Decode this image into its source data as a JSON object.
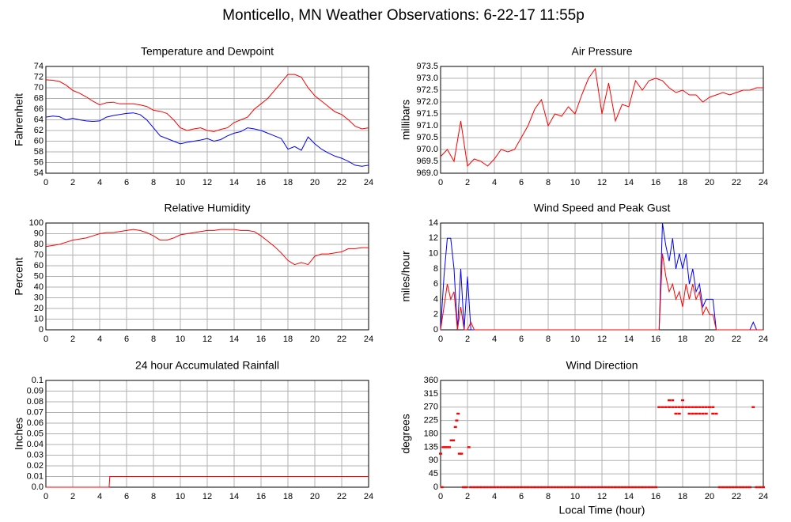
{
  "title": "Monticello, MN Weather Observations: 6-22-17 11:55p",
  "chart_data": [
    {
      "type": "line",
      "title": "Temperature and Dewpoint",
      "ylabel": "Fahrenheit",
      "x": [
        0,
        0.5,
        1,
        1.5,
        2,
        2.5,
        3,
        3.5,
        4,
        4.5,
        5,
        5.5,
        6,
        6.5,
        7,
        7.5,
        8,
        8.5,
        9,
        9.5,
        10,
        10.5,
        11,
        11.5,
        12,
        12.5,
        13,
        13.5,
        14,
        14.5,
        15,
        15.5,
        16,
        16.5,
        17,
        17.5,
        18,
        18.5,
        19,
        19.5,
        20,
        20.5,
        21,
        21.5,
        22,
        22.5,
        23,
        23.5,
        24
      ],
      "series": [
        {
          "color": "#ff0000",
          "values": [
            71.5,
            71.4,
            71.2,
            70.5,
            69.5,
            69,
            68.3,
            67.5,
            66.8,
            67.2,
            67.3,
            67,
            67,
            67,
            66.8,
            66.5,
            65.8,
            65.6,
            65.2,
            64,
            62.5,
            62,
            62.3,
            62.5,
            62,
            61.8,
            62.2,
            62.5,
            63.5,
            64,
            64.5,
            66,
            67,
            68,
            69.5,
            71,
            72.5,
            72.5,
            72,
            70,
            68.5,
            67.5,
            66.5,
            65.5,
            65,
            64,
            62.8,
            62.3,
            62.5
          ]
        },
        {
          "color": "#0000ff",
          "values": [
            64.5,
            64.7,
            64.6,
            64,
            64.3,
            64,
            63.8,
            63.7,
            63.8,
            64.5,
            64.8,
            65,
            65.2,
            65.3,
            65,
            64,
            62.5,
            61,
            60.5,
            60,
            59.5,
            59.8,
            60,
            60.2,
            60.5,
            60,
            60.3,
            61,
            61.5,
            61.8,
            62.5,
            62.3,
            62,
            61.5,
            61,
            60.5,
            58.5,
            59,
            58.3,
            60.8,
            59.5,
            58.5,
            57.8,
            57.2,
            56.8,
            56.2,
            55.5,
            55.3,
            55.5
          ]
        }
      ],
      "xlim": [
        0,
        24
      ],
      "xticks": [
        0,
        2,
        4,
        6,
        8,
        10,
        12,
        14,
        16,
        18,
        20,
        22,
        24
      ],
      "ylim": [
        54,
        74
      ],
      "yticks": [
        54,
        56,
        58,
        60,
        62,
        64,
        66,
        68,
        70,
        72,
        74
      ],
      "grid": true
    },
    {
      "type": "line",
      "title": "Air Pressure",
      "ylabel": "millibars",
      "x": [
        0,
        0.5,
        1,
        1.5,
        2,
        2.5,
        3,
        3.5,
        4,
        4.5,
        5,
        5.5,
        6,
        6.5,
        7,
        7.5,
        8,
        8.5,
        9,
        9.5,
        10,
        10.5,
        11,
        11.5,
        12,
        12.5,
        13,
        13.5,
        14,
        14.5,
        15,
        15.5,
        16,
        16.5,
        17,
        17.5,
        18,
        18.5,
        19,
        19.5,
        20,
        20.5,
        21,
        21.5,
        22,
        22.5,
        23,
        23.5,
        24
      ],
      "series": [
        {
          "color": "#ff0000",
          "values": [
            969.7,
            970,
            969.5,
            971.2,
            969.3,
            969.6,
            969.5,
            969.3,
            969.6,
            970,
            969.9,
            970,
            970.5,
            971,
            971.7,
            972.1,
            971,
            971.5,
            971.4,
            971.8,
            971.5,
            972.3,
            973,
            973.4,
            971.5,
            972.8,
            971.2,
            971.9,
            971.8,
            972.9,
            972.5,
            972.9,
            973,
            972.9,
            972.6,
            972.4,
            972.5,
            972.3,
            972.3,
            972,
            972.2,
            972.3,
            972.4,
            972.3,
            972.4,
            972.5,
            972.5,
            972.6,
            972.6
          ]
        }
      ],
      "xlim": [
        0,
        24
      ],
      "xticks": [
        0,
        2,
        4,
        6,
        8,
        10,
        12,
        14,
        16,
        18,
        20,
        22,
        24
      ],
      "ylim": [
        969,
        973.5
      ],
      "yticks": [
        {
          "value": 969,
          "label": "969.0"
        },
        969.5,
        {
          "value": 970,
          "label": "970.0"
        },
        970.5,
        {
          "value": 971,
          "label": "971.0"
        },
        971.5,
        {
          "value": 972,
          "label": "972.0"
        },
        972.5,
        {
          "value": 973,
          "label": "973.0"
        },
        973.5
      ],
      "grid": true
    },
    {
      "type": "line",
      "title": "Relative Humidity",
      "ylabel": "Percent",
      "x": [
        0,
        0.5,
        1,
        1.5,
        2,
        2.5,
        3,
        3.5,
        4,
        4.5,
        5,
        5.5,
        6,
        6.5,
        7,
        7.5,
        8,
        8.5,
        9,
        9.5,
        10,
        10.5,
        11,
        11.5,
        12,
        12.5,
        13,
        13.5,
        14,
        14.5,
        15,
        15.5,
        16,
        16.5,
        17,
        17.5,
        18,
        18.5,
        19,
        19.5,
        20,
        20.5,
        21,
        21.5,
        22,
        22.5,
        23,
        23.5,
        24
      ],
      "series": [
        {
          "color": "#ff0000",
          "values": [
            78,
            79,
            80,
            82,
            84,
            85,
            86,
            88,
            90,
            91,
            91,
            92,
            93,
            94,
            93,
            91,
            88,
            84,
            84,
            86,
            89,
            90,
            91,
            92,
            93,
            93,
            94,
            94,
            94,
            93,
            93,
            92,
            88,
            83,
            78,
            72,
            65,
            61,
            63,
            61,
            69,
            71,
            71,
            72,
            73,
            76,
            76,
            77,
            77
          ]
        }
      ],
      "xlim": [
        0,
        24
      ],
      "xticks": [
        0,
        2,
        4,
        6,
        8,
        10,
        12,
        14,
        16,
        18,
        20,
        22,
        24
      ],
      "ylim": [
        0,
        100
      ],
      "yticks": [
        0,
        10,
        20,
        30,
        40,
        50,
        60,
        70,
        80,
        90,
        100
      ],
      "grid": true
    },
    {
      "type": "line",
      "title": "Wind Speed and Peak Gust",
      "ylabel": "miles/hour",
      "x": [
        0,
        0.25,
        0.5,
        0.75,
        1,
        1.25,
        1.5,
        1.75,
        2,
        2.25,
        2.5,
        4,
        6,
        8,
        10,
        12,
        14,
        16,
        16.25,
        16.5,
        16.75,
        17,
        17.25,
        17.5,
        17.75,
        18,
        18.25,
        18.5,
        18.75,
        19,
        19.25,
        19.5,
        19.75,
        20,
        20.25,
        20.5,
        20.75,
        21,
        22,
        23,
        23.25,
        23.5,
        24
      ],
      "series": [
        {
          "color": "#0000ff",
          "values": [
            0,
            7,
            12,
            12,
            8,
            0,
            8,
            0,
            7,
            0,
            0,
            0,
            0,
            0,
            0,
            0,
            0,
            0,
            0,
            14,
            11,
            9,
            12,
            8,
            10,
            8,
            10,
            6,
            8,
            5,
            6,
            3,
            4,
            4,
            4,
            0,
            0,
            0,
            0,
            0,
            1,
            0,
            0
          ]
        },
        {
          "color": "#ff0000",
          "values": [
            0,
            3,
            6,
            4,
            5,
            0,
            3,
            0,
            0,
            1,
            0,
            0,
            0,
            0,
            0,
            0,
            0,
            0,
            0,
            10,
            7,
            5,
            6,
            4,
            5,
            3,
            6,
            4,
            6,
            4,
            5,
            2,
            3,
            2,
            2,
            0,
            0,
            0,
            0,
            0,
            0,
            0,
            0
          ]
        }
      ],
      "xlim": [
        0,
        24
      ],
      "xticks": [
        0,
        2,
        4,
        6,
        8,
        10,
        12,
        14,
        16,
        18,
        20,
        22,
        24
      ],
      "ylim": [
        0,
        14
      ],
      "yticks": [
        0,
        2,
        4,
        6,
        8,
        10,
        12,
        14
      ],
      "grid": true
    },
    {
      "type": "line",
      "title": "24 hour Accumulated Rainfall",
      "ylabel": "Inches",
      "x": [
        0,
        4.7,
        4.75,
        24
      ],
      "series": [
        {
          "color": "#ff0000",
          "values": [
            0,
            0,
            0.01,
            0.01
          ]
        }
      ],
      "xlim": [
        0,
        24
      ],
      "xticks": [
        0,
        2,
        4,
        6,
        8,
        10,
        12,
        14,
        16,
        18,
        20,
        22,
        24
      ],
      "ylim": [
        0,
        0.1
      ],
      "yticks": [
        {
          "value": 0,
          "label": "0.0"
        },
        0.01,
        0.02,
        0.03,
        0.04,
        0.05,
        0.06,
        0.07,
        0.08,
        0.09,
        0.1
      ],
      "grid": true
    },
    {
      "type": "scatter",
      "title": "Wind Direction",
      "ylabel": "degrees",
      "xlabel": "Local Time (hour)",
      "color": "#ff0000",
      "x": [
        0,
        0.1,
        0.2,
        0.35,
        0.5,
        0.65,
        0.8,
        0.95,
        1.1,
        1.2,
        1.3,
        1.4,
        1.55,
        1.7,
        1.9,
        2.1,
        2.25,
        2.5,
        2.75,
        3,
        3.25,
        3.5,
        3.75,
        4,
        4.25,
        4.5,
        4.75,
        5,
        5.25,
        5.5,
        5.75,
        6,
        6.25,
        6.5,
        6.75,
        7,
        7.25,
        7.5,
        7.75,
        8,
        8.25,
        8.5,
        8.75,
        9,
        9.25,
        9.5,
        9.75,
        10,
        10.25,
        10.5,
        10.75,
        11,
        11.25,
        11.5,
        11.75,
        12,
        12.25,
        12.5,
        12.75,
        13,
        13.25,
        13.5,
        13.75,
        14,
        14.25,
        14.5,
        14.75,
        15,
        15.25,
        15.5,
        15.75,
        16,
        16.25,
        16.5,
        16.75,
        17,
        17.25,
        17.5,
        17.75,
        18,
        18.25,
        18.5,
        18.75,
        19,
        19.25,
        19.5,
        19.75,
        20,
        20.25,
        17,
        17.25,
        18,
        17.5,
        17.75,
        18.5,
        18.75,
        19,
        19.25,
        19.5,
        19.75,
        20.25,
        20.5,
        20.75,
        21,
        21.25,
        21.5,
        21.75,
        22,
        22.25,
        22.5,
        22.75,
        23,
        23.5,
        23.75,
        24,
        23.25
      ],
      "values": [
        113,
        0,
        135,
        135,
        135,
        135,
        158,
        158,
        203,
        225,
        248,
        113,
        113,
        0,
        0,
        135,
        0,
        0,
        0,
        0,
        0,
        0,
        0,
        0,
        0,
        0,
        0,
        0,
        0,
        0,
        0,
        0,
        0,
        0,
        0,
        0,
        0,
        0,
        0,
        0,
        0,
        0,
        0,
        0,
        0,
        0,
        0,
        0,
        0,
        0,
        0,
        0,
        0,
        0,
        0,
        0,
        0,
        0,
        0,
        0,
        0,
        0,
        0,
        0,
        0,
        0,
        0,
        0,
        0,
        0,
        0,
        0,
        270,
        270,
        270,
        270,
        270,
        270,
        270,
        270,
        270,
        270,
        270,
        270,
        270,
        270,
        270,
        270,
        270,
        293,
        293,
        293,
        248,
        248,
        248,
        248,
        248,
        248,
        248,
        248,
        248,
        248,
        0,
        0,
        0,
        0,
        0,
        0,
        0,
        0,
        0,
        0,
        0,
        0,
        0,
        270
      ],
      "xlim": [
        0,
        24
      ],
      "xticks": [
        0,
        2,
        4,
        6,
        8,
        10,
        12,
        14,
        16,
        18,
        20,
        22,
        24
      ],
      "ylim": [
        0,
        360
      ],
      "yticks": [
        0,
        45,
        90,
        135,
        180,
        225,
        270,
        315,
        360
      ],
      "grid": true
    }
  ]
}
